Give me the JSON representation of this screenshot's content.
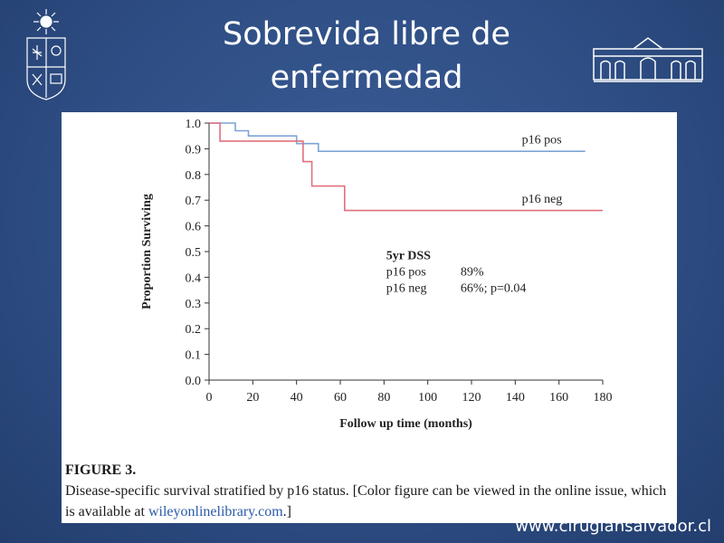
{
  "slide": {
    "title_line1": "Sobrevida libre de",
    "title_line2": "enfermedad",
    "footer_url": "www.cirugiahsalvador.cl"
  },
  "logos": {
    "left": "university-seal-icon",
    "right": "hospital-building-icon"
  },
  "colors": {
    "background": "#2f4f85",
    "p16_pos": "#7da3d8",
    "p16_neg": "#e0707c"
  },
  "chart_data": {
    "type": "line",
    "step": true,
    "title": "",
    "xlabel": "Follow up time (months)",
    "ylabel": "Proportion Surviving",
    "xlim": [
      0,
      180
    ],
    "ylim": [
      0.0,
      1.0
    ],
    "x_ticks": [
      "0",
      "20",
      "40",
      "60",
      "80",
      "100",
      "120",
      "140",
      "160",
      "180"
    ],
    "y_ticks": [
      "0.0",
      "0.1",
      "0.2",
      "0.3",
      "0.4",
      "0.5",
      "0.6",
      "0.7",
      "0.8",
      "0.9",
      "1.0"
    ],
    "grid": false,
    "series": [
      {
        "name": "p16 pos",
        "color": "#7da3d8",
        "x": [
          0,
          12,
          12,
          18,
          18,
          40,
          40,
          50,
          50,
          172
        ],
        "y": [
          1.0,
          1.0,
          0.97,
          0.97,
          0.95,
          0.95,
          0.92,
          0.92,
          0.89,
          0.89
        ]
      },
      {
        "name": "p16 neg",
        "color": "#e0707c",
        "x": [
          0,
          5,
          5,
          43,
          43,
          47,
          47,
          62,
          62,
          180
        ],
        "y": [
          1.0,
          1.0,
          0.93,
          0.93,
          0.85,
          0.85,
          0.755,
          0.755,
          0.66,
          0.66
        ]
      }
    ],
    "annotation": {
      "heading": "5yr DSS",
      "rows": [
        {
          "group": "p16 pos",
          "value": "89%"
        },
        {
          "group": "p16 neg",
          "value": "66%; p=0.04"
        }
      ]
    }
  },
  "caption": {
    "heading": "FIGURE 3.",
    "text": "Disease-specific survival stratified by p16 status. [Color figure can be viewed in the online issue, which is available at ",
    "link": "wileyonlinelibrary.com",
    "end": ".]"
  }
}
